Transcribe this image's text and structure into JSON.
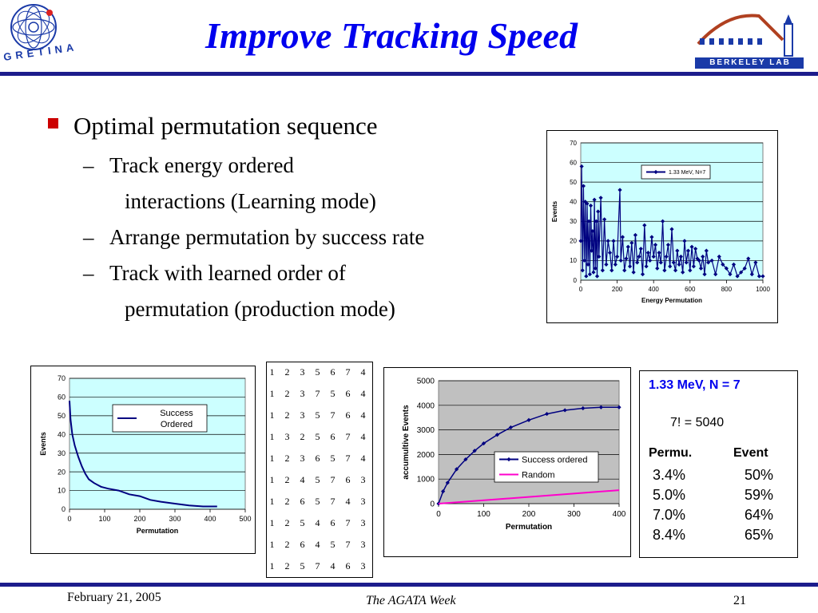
{
  "header": {
    "title": "Improve Tracking Speed",
    "logo_left_text": "GRETINA",
    "logo_right_text": "BERKELEY LAB"
  },
  "bullets": {
    "main": "Optimal permutation sequence",
    "subs": [
      {
        "dash": "–",
        "lines": [
          "Track energy ordered",
          "interactions (Learning mode)"
        ]
      },
      {
        "dash": "–",
        "lines": [
          "Arrange permutation by success rate"
        ]
      },
      {
        "dash": "–",
        "lines": [
          "Track with learned order of",
          "permutation (production mode)"
        ]
      }
    ]
  },
  "permutation_table": [
    "1 2 3 5 6 7 4",
    "1 2 3 7 5 6 4",
    "1 2 3 5 7 6 4",
    "1 3 2 5 6 7 4",
    "1 2 3 6 5 7 4",
    "1 2 4 5 7 6 3",
    "1 2 6 5 7 4 3",
    "1 2 5 4 6 7 3",
    "1 2 6 4 5 7 3",
    "1 2 5 7 4 6 3"
  ],
  "info_box": {
    "title": "1.33 MeV, N = 7",
    "factorial": "7! = 5040",
    "col_headers": [
      "Permu.",
      "Event"
    ],
    "rows": [
      [
        "3.4%",
        "50%"
      ],
      [
        "5.0%",
        "59%"
      ],
      [
        "7.0%",
        "64%"
      ],
      [
        "8.4%",
        "65%"
      ]
    ]
  },
  "footer": {
    "date": "February 21, 2005",
    "event": "The AGATA Week",
    "page": "21"
  },
  "colors": {
    "title": "#0000ee",
    "bar": "#1c1c8c",
    "series_blue": "#000080",
    "series_pink": "#ff00cc",
    "plot_cyan": "#ccffff",
    "plot_gray": "#c0c0c0"
  },
  "chart_data": [
    {
      "type": "line",
      "xlabel": "Energy Permutation",
      "ylabel": "Events",
      "xlim": [
        0,
        1000
      ],
      "ylim": [
        0,
        70
      ],
      "x_ticks": [
        "0",
        "200",
        "400",
        "600",
        "800",
        "1000"
      ],
      "y_ticks": [
        "0",
        "10",
        "20",
        "30",
        "40",
        "50",
        "60",
        "70"
      ],
      "legend_position": "top-right",
      "series": [
        {
          "name": "1.33 MeV, N=7",
          "x": [
            0,
            5,
            10,
            15,
            20,
            25,
            30,
            35,
            40,
            45,
            50,
            55,
            60,
            65,
            70,
            75,
            80,
            85,
            90,
            95,
            100,
            110,
            120,
            130,
            140,
            150,
            160,
            170,
            180,
            190,
            200,
            215,
            220,
            230,
            240,
            250,
            260,
            270,
            280,
            290,
            300,
            310,
            320,
            330,
            340,
            350,
            360,
            370,
            380,
            390,
            400,
            410,
            420,
            430,
            440,
            450,
            460,
            470,
            480,
            490,
            500,
            510,
            520,
            530,
            540,
            550,
            560,
            570,
            580,
            590,
            600,
            610,
            620,
            630,
            640,
            650,
            660,
            670,
            680,
            690,
            700,
            720,
            740,
            760,
            780,
            800,
            820,
            840,
            860,
            880,
            900,
            920,
            940,
            960,
            980,
            1000
          ],
          "y": [
            20,
            58,
            5,
            48,
            10,
            40,
            2,
            39,
            8,
            30,
            3,
            38,
            15,
            25,
            4,
            41,
            6,
            30,
            2,
            35,
            12,
            42,
            5,
            31,
            8,
            20,
            14,
            5,
            20,
            8,
            12,
            46,
            10,
            22,
            5,
            11,
            17,
            7,
            19,
            4,
            23,
            9,
            12,
            16,
            3,
            28,
            7,
            14,
            10,
            22,
            12,
            18,
            6,
            14,
            9,
            30,
            5,
            12,
            18,
            7,
            26,
            9,
            5,
            15,
            8,
            12,
            4,
            20,
            9,
            15,
            5,
            17,
            7,
            16,
            11,
            10,
            6,
            12,
            3,
            15,
            9,
            10,
            3,
            12,
            8,
            6,
            3,
            8,
            2,
            4,
            6,
            11,
            3,
            9,
            2,
            2
          ]
        }
      ]
    },
    {
      "type": "line",
      "xlabel": "Permutation",
      "ylabel": "Events",
      "xlim": [
        0,
        500
      ],
      "ylim": [
        0,
        70
      ],
      "x_ticks": [
        "0",
        "100",
        "200",
        "300",
        "400",
        "500"
      ],
      "y_ticks": [
        "0",
        "10",
        "20",
        "30",
        "40",
        "50",
        "60",
        "70"
      ],
      "legend_position": "top-right",
      "series": [
        {
          "name": "Success Ordered",
          "x": [
            0,
            3,
            8,
            15,
            25,
            35,
            45,
            55,
            70,
            90,
            110,
            140,
            170,
            200,
            230,
            260,
            300,
            340,
            380,
            420
          ],
          "y": [
            58,
            48,
            40,
            34,
            28,
            23,
            19,
            16,
            14,
            12,
            11,
            10,
            8,
            7,
            5,
            4,
            3,
            2,
            1.5,
            1.5
          ]
        }
      ]
    },
    {
      "type": "line",
      "xlabel": "Permutation",
      "ylabel": "accumultive Events",
      "xlim": [
        0,
        400
      ],
      "ylim": [
        0,
        5000
      ],
      "x_ticks": [
        "0",
        "100",
        "200",
        "300",
        "400"
      ],
      "y_ticks": [
        "0",
        "1000",
        "2000",
        "3000",
        "4000",
        "5000"
      ],
      "legend_position": "center-right",
      "series": [
        {
          "name": "Success ordered",
          "x": [
            0,
            10,
            20,
            40,
            60,
            80,
            100,
            130,
            160,
            200,
            240,
            280,
            320,
            360,
            400
          ],
          "y": [
            0,
            500,
            850,
            1400,
            1800,
            2150,
            2450,
            2800,
            3100,
            3400,
            3650,
            3800,
            3880,
            3920,
            3920
          ]
        },
        {
          "name": "Random",
          "x": [
            0,
            400
          ],
          "y": [
            0,
            550
          ]
        }
      ]
    }
  ]
}
